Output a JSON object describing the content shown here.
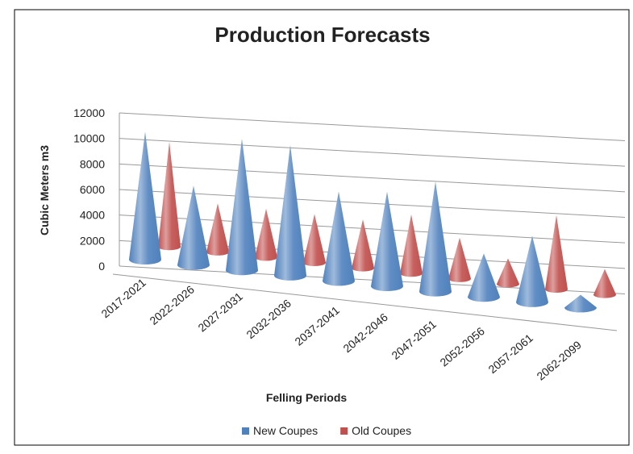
{
  "chart_data": {
    "type": "cone",
    "title": "Production Forecasts",
    "x_label": "Felling Periods",
    "y_label": "Cubic Meters m3",
    "categories": [
      "2017-2021",
      "2022-2026",
      "2027-2031",
      "2032-2036",
      "2037-2041",
      "2042-2046",
      "2047-2051",
      "2052-2056",
      "2057-2061",
      "2062-2099"
    ],
    "series": [
      {
        "name": "New Coupes",
        "color": "#4f81bd",
        "values": [
          10000,
          6200,
          10300,
          10200,
          7000,
          7400,
          8600,
          3400,
          5200,
          1000
        ]
      },
      {
        "name": "Old Coupes",
        "color": "#c0504d",
        "values": [
          8200,
          3800,
          3800,
          3800,
          3800,
          4600,
          3200,
          2000,
          5800,
          2000
        ]
      }
    ],
    "ylim": [
      0,
      12000
    ],
    "yticks": [
      0,
      2000,
      4000,
      6000,
      8000,
      10000,
      12000
    ],
    "grid": true,
    "legend": "bottom"
  }
}
